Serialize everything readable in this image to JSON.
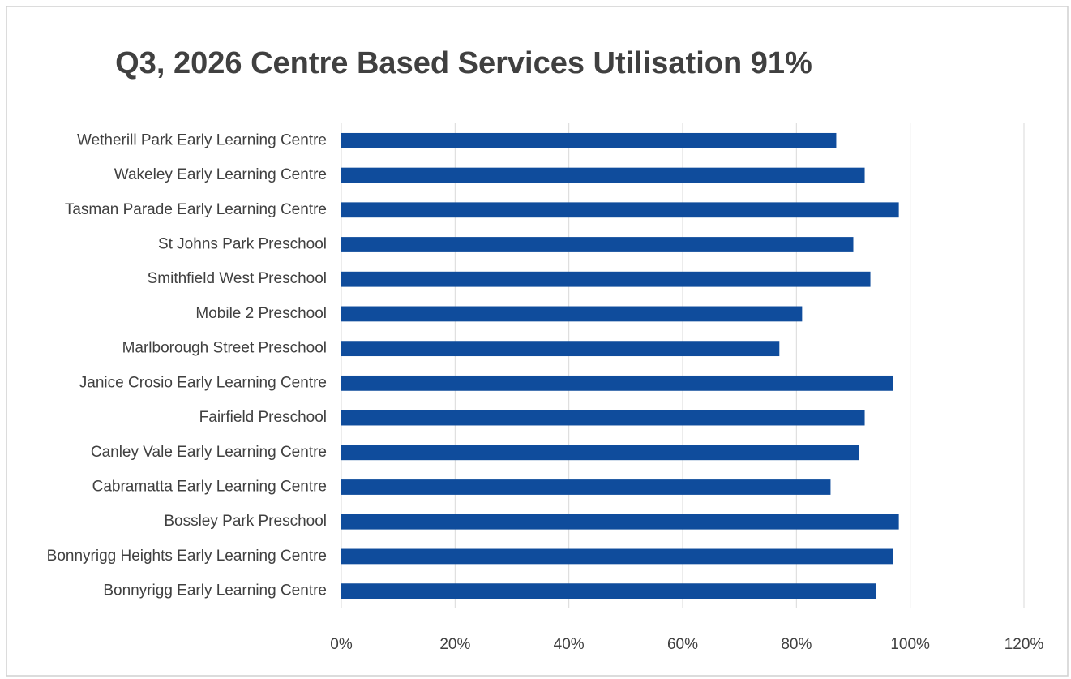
{
  "chart_data": {
    "type": "bar",
    "orientation": "horizontal",
    "title": "Q3, 2026 Centre Based Services Utilisation 91%",
    "categories": [
      "Wetherill Park Early Learning Centre",
      "Wakeley Early Learning Centre",
      "Tasman Parade Early Learning Centre",
      "St Johns Park Preschool",
      "Smithfield West Preschool",
      "Mobile 2 Preschool",
      "Marlborough Street Preschool",
      "Janice Crosio Early Learning Centre",
      "Fairfield Preschool",
      "Canley Vale Early Learning Centre",
      "Cabramatta Early Learning Centre",
      "Bossley Park Preschool",
      "Bonnyrigg Heights Early Learning Centre",
      "Bonnyrigg Early Learning Centre"
    ],
    "values": [
      87,
      92,
      98,
      90,
      93,
      81,
      77,
      97,
      92,
      91,
      86,
      98,
      97,
      94
    ],
    "color": "#0f4c9c",
    "xlim": [
      0,
      120
    ],
    "xticks": [
      {
        "value": 0,
        "label": "0%"
      },
      {
        "value": 20,
        "label": "20%"
      },
      {
        "value": 40,
        "label": "40%"
      },
      {
        "value": 60,
        "label": "60%"
      },
      {
        "value": 80,
        "label": "80%"
      },
      {
        "value": 100,
        "label": "100%"
      },
      {
        "value": 120,
        "label": "120%"
      }
    ],
    "grid": true
  }
}
